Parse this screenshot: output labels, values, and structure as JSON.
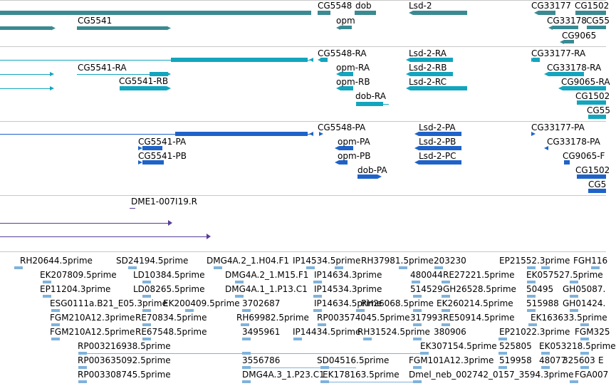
{
  "colors": {
    "gene": "#3a8a92",
    "transcript": "#13a5be",
    "protein": "#1f63c9",
    "clone": "#5a3c9a",
    "est": "#7fb2db",
    "separator": "#c8c8c8"
  },
  "genes": [
    {
      "id": "g-cg5541",
      "label": "CG5541"
    },
    {
      "id": "g-cg5548",
      "label": "CG5548"
    },
    {
      "id": "g-dob",
      "label": "dob"
    },
    {
      "id": "g-opm",
      "label": "opm"
    },
    {
      "id": "g-lsd2",
      "label": "Lsd-2"
    },
    {
      "id": "g-cg33177",
      "label": "CG33177"
    },
    {
      "id": "g-cg1502",
      "label": "CG1502"
    },
    {
      "id": "g-cg33178",
      "label": "CG33178"
    },
    {
      "id": "g-cg55",
      "label": "CG55"
    },
    {
      "id": "g-cg9065",
      "label": "CG9065"
    }
  ],
  "transcripts": [
    {
      "id": "t-cg5541-ra",
      "label": "CG5541-RA"
    },
    {
      "id": "t-cg5541-rb",
      "label": "CG5541-RB"
    },
    {
      "id": "t-cg5548-ra",
      "label": "CG5548-RA"
    },
    {
      "id": "t-opm-ra",
      "label": "opm-RA"
    },
    {
      "id": "t-opm-rb",
      "label": "opm-RB"
    },
    {
      "id": "t-dob-ra",
      "label": "dob-RA"
    },
    {
      "id": "t-lsd2-ra",
      "label": "Lsd-2-RA"
    },
    {
      "id": "t-lsd2-rb",
      "label": "Lsd-2-RB"
    },
    {
      "id": "t-lsd2-rc",
      "label": "Lsd-2-RC"
    },
    {
      "id": "t-cg33177-ra",
      "label": "CG33177-RA"
    },
    {
      "id": "t-cg33178-ra",
      "label": "CG33178-RA"
    },
    {
      "id": "t-cg9065-ra",
      "label": "CG9065-RA"
    },
    {
      "id": "t-cg1502",
      "label": "CG1502"
    },
    {
      "id": "t-cg55",
      "label": "CG55"
    }
  ],
  "proteins": [
    {
      "id": "p-cg5548-pa",
      "label": "CG5548-PA"
    },
    {
      "id": "p-cg5541-pa",
      "label": "CG5541-PA"
    },
    {
      "id": "p-cg5541-pb",
      "label": "CG5541-PB"
    },
    {
      "id": "p-opm-pa",
      "label": "opm-PA"
    },
    {
      "id": "p-opm-pb",
      "label": "opm-PB"
    },
    {
      "id": "p-dob-pa",
      "label": "dob-PA"
    },
    {
      "id": "p-lsd2-pa",
      "label": "Lsd-2-PA"
    },
    {
      "id": "p-lsd2-pb",
      "label": "Lsd-2-PB"
    },
    {
      "id": "p-lsd2-pc",
      "label": "Lsd-2-PC"
    },
    {
      "id": "p-cg33177-pa",
      "label": "CG33177-PA"
    },
    {
      "id": "p-cg33178-pa",
      "label": "CG33178-PA"
    },
    {
      "id": "p-cg9065",
      "label": "CG9065-F"
    },
    {
      "id": "p-cg1502",
      "label": "CG1502"
    },
    {
      "id": "p-cg5",
      "label": "CG5"
    }
  ],
  "clones": [
    {
      "id": "c-dme1",
      "label": "DME1-007I19.R"
    }
  ],
  "ests": [
    "RH20644.5prime",
    "SD24194.5prime",
    "DMG4A.2_1.H04.F1",
    "IP14534.5prime",
    "RH37981.5prime",
    "203230",
    "EP21552.3prime",
    "FGH116",
    "EK207809.5prime",
    "LD10384.5prime",
    "DMG4A.2_1.M15.F1",
    "IP14634.3prime",
    "480044",
    "RE27221.5prime",
    "EK057527.5prime",
    "EP11204.3prime",
    "LD08265.5prime",
    "DMG4A.1_1.P13.C1",
    "IP14534.3prime",
    "514529",
    "GH26528.5prime",
    "50495",
    "GH05087.",
    "ESG0111a.B21_E05.3prime",
    "EK200409.5prime",
    "3702687",
    "IP14634.5prime",
    "RH26068.5prime",
    "EK260214.5prime",
    "515988",
    "GH01424.",
    "FGM210A12.3prime",
    "RE70834.5prime",
    "RH69982.5prime",
    "RP003574045.5prime",
    "317993",
    "RE50914.5prime",
    "EK163633.5prime",
    "FGM210A12.5prime",
    "RE67548.5prime",
    "3495961",
    "IP14434.5prime",
    "RH31524.5prime",
    "380906",
    "EP21022.3prime",
    "FGM325",
    "RP003216938.5prime",
    "EK307154.5prime",
    "525805",
    "EK053218.5prime",
    "RP003635092.5prime",
    "3556786",
    "SD04516.5prime",
    "FGM101A12.3prime",
    "519958",
    "48077",
    "325603",
    "E",
    "RP003308745.5prime",
    "DMG4A.3_1.P23.C1",
    "EK178163.5prime",
    "Dmel_neb_002742_0157_3594.3prime",
    "FGA007"
  ]
}
